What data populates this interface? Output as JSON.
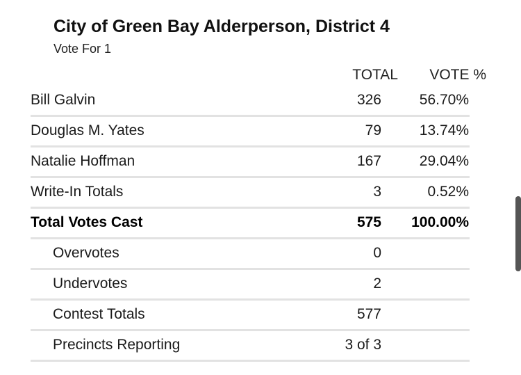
{
  "contest": {
    "title": "City of Green Bay Alderperson, District 4",
    "subtitle": "Vote For 1"
  },
  "headers": {
    "total": "TOTAL",
    "pct": "VOTE %"
  },
  "rows": [
    {
      "label": "Bill Galvin",
      "total": "326",
      "pct": "56.70%"
    },
    {
      "label": "Douglas M. Yates",
      "total": "79",
      "pct": "13.74%"
    },
    {
      "label": "Natalie Hoffman",
      "total": "167",
      "pct": "29.04%"
    },
    {
      "label": "Write-In Totals",
      "total": "3",
      "pct": "0.52%"
    },
    {
      "label": "Total Votes Cast",
      "total": "575",
      "pct": "100.00%"
    },
    {
      "label": "Overvotes",
      "total": "0",
      "pct": ""
    },
    {
      "label": "Undervotes",
      "total": "2",
      "pct": ""
    },
    {
      "label": "Contest Totals",
      "total": "577",
      "pct": ""
    },
    {
      "label": "Precincts Reporting",
      "total": "3 of 3",
      "pct": ""
    }
  ]
}
